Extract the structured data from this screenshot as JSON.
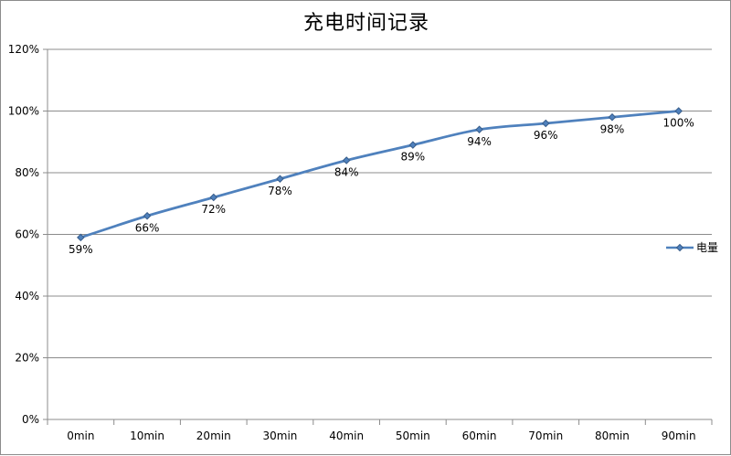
{
  "colors": {
    "series_line": "#4f81bd",
    "marker_fill": "#4f81bd",
    "marker_stroke": "#385d8a",
    "grid": "#8c8c8c",
    "axis": "#8c8c8c",
    "text": "#000000"
  },
  "chart_data": {
    "type": "line",
    "title": "充电时间记录",
    "xlabel": "",
    "ylabel": "",
    "categories": [
      "0min",
      "10min",
      "20min",
      "30min",
      "40min",
      "50min",
      "60min",
      "70min",
      "80min",
      "90min"
    ],
    "series": [
      {
        "name": "电量",
        "values": [
          59,
          66,
          72,
          78,
          84,
          89,
          94,
          96,
          98,
          100
        ],
        "data_labels": [
          "59%",
          "66%",
          "72%",
          "78%",
          "84%",
          "89%",
          "94%",
          "96%",
          "98%",
          "100%"
        ],
        "marker": "diamond",
        "smooth": true
      }
    ],
    "ylim": [
      0,
      120
    ],
    "yticks": [
      0,
      20,
      40,
      60,
      80,
      100,
      120
    ],
    "ytick_labels": [
      "0%",
      "20%",
      "40%",
      "60%",
      "80%",
      "100%",
      "120%"
    ],
    "grid": true,
    "legend_position": "right"
  }
}
